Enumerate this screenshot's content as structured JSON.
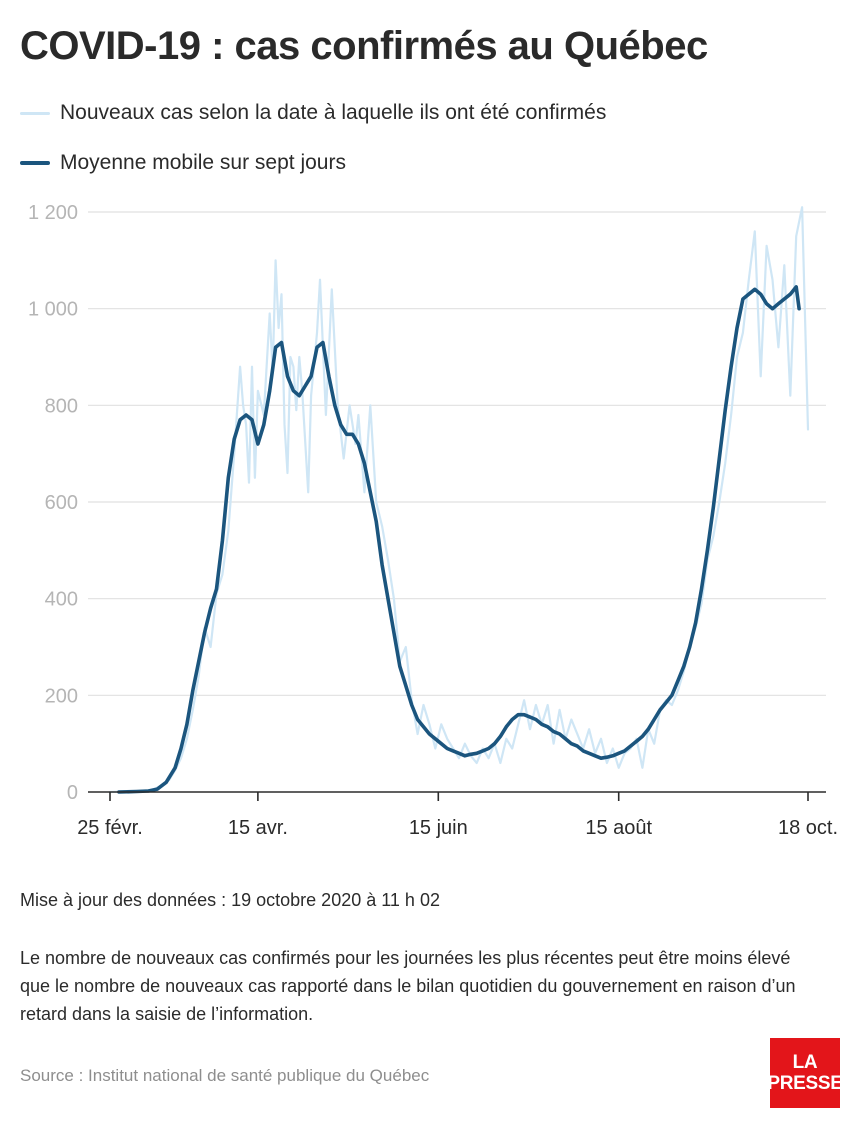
{
  "title": "COVID-19 : cas confirmés au Québec",
  "legend": [
    {
      "label": "Nouveaux cas selon la date à laquelle ils ont été confirmés",
      "color": "#cfe6f5"
    },
    {
      "label": "Moyenne mobile sur sept jours",
      "color": "#1b557e"
    }
  ],
  "updated": "Mise à jour des données : 19 octobre 2020 à 11 h 02",
  "note": "Le nombre de nouveaux cas confirmés pour les journées les plus récentes peut être moins élevé que le nombre de nouveaux cas rapporté dans le bilan quotidien du gouvernement en raison d’un retard dans la saisie de l’information.",
  "source": "Source : Institut national de santé publique du Québec",
  "logo": {
    "line1": "LA",
    "line2": "PRESSE"
  },
  "chart_data": {
    "type": "line",
    "title": "COVID-19 : cas confirmés au Québec",
    "xlabel": "",
    "ylabel": "",
    "x_start": "2020-02-25",
    "x_end": "2020-10-18",
    "ylim": [
      0,
      1200
    ],
    "grid": true,
    "legend_position": "top-left",
    "y_ticks": [
      {
        "value": 0,
        "label": "0"
      },
      {
        "value": 200,
        "label": "200"
      },
      {
        "value": 400,
        "label": "400"
      },
      {
        "value": 600,
        "label": "600"
      },
      {
        "value": 800,
        "label": "800"
      },
      {
        "value": 1000,
        "label": "1 000"
      },
      {
        "value": 1200,
        "label": "1 200"
      }
    ],
    "x_ticks": [
      {
        "date": "2020-02-25",
        "label": "25 févr."
      },
      {
        "date": "2020-04-15",
        "label": "15 avr."
      },
      {
        "date": "2020-06-15",
        "label": "15 juin"
      },
      {
        "date": "2020-08-15",
        "label": "15 août"
      },
      {
        "date": "2020-10-18",
        "label": "18 oct."
      }
    ],
    "series": [
      {
        "name": "Nouveaux cas selon la date à laquelle ils ont été confirmés",
        "color": "#cfe6f5",
        "points": [
          [
            "2020-02-25",
            0
          ],
          [
            "2020-03-01",
            1
          ],
          [
            "2020-03-06",
            2
          ],
          [
            "2020-03-10",
            4
          ],
          [
            "2020-03-13",
            12
          ],
          [
            "2020-03-16",
            25
          ],
          [
            "2020-03-18",
            45
          ],
          [
            "2020-03-20",
            70
          ],
          [
            "2020-03-22",
            110
          ],
          [
            "2020-03-24",
            170
          ],
          [
            "2020-03-26",
            240
          ],
          [
            "2020-03-28",
            340
          ],
          [
            "2020-03-30",
            300
          ],
          [
            "2020-04-01",
            410
          ],
          [
            "2020-04-03",
            450
          ],
          [
            "2020-04-05",
            540
          ],
          [
            "2020-04-07",
            700
          ],
          [
            "2020-04-09",
            880
          ],
          [
            "2020-04-10",
            800
          ],
          [
            "2020-04-11",
            760
          ],
          [
            "2020-04-12",
            640
          ],
          [
            "2020-04-13",
            880
          ],
          [
            "2020-04-14",
            650
          ],
          [
            "2020-04-15",
            830
          ],
          [
            "2020-04-17",
            780
          ],
          [
            "2020-04-19",
            990
          ],
          [
            "2020-04-20",
            870
          ],
          [
            "2020-04-21",
            1100
          ],
          [
            "2020-04-22",
            960
          ],
          [
            "2020-04-23",
            1030
          ],
          [
            "2020-04-24",
            760
          ],
          [
            "2020-04-25",
            660
          ],
          [
            "2020-04-26",
            900
          ],
          [
            "2020-04-27",
            880
          ],
          [
            "2020-04-28",
            790
          ],
          [
            "2020-04-29",
            900
          ],
          [
            "2020-04-30",
            830
          ],
          [
            "2020-05-02",
            620
          ],
          [
            "2020-05-03",
            820
          ],
          [
            "2020-05-05",
            950
          ],
          [
            "2020-05-06",
            1060
          ],
          [
            "2020-05-08",
            780
          ],
          [
            "2020-05-10",
            1040
          ],
          [
            "2020-05-12",
            800
          ],
          [
            "2020-05-14",
            690
          ],
          [
            "2020-05-16",
            800
          ],
          [
            "2020-05-18",
            720
          ],
          [
            "2020-05-19",
            780
          ],
          [
            "2020-05-21",
            620
          ],
          [
            "2020-05-23",
            800
          ],
          [
            "2020-05-25",
            600
          ],
          [
            "2020-05-27",
            550
          ],
          [
            "2020-05-29",
            480
          ],
          [
            "2020-05-31",
            400
          ],
          [
            "2020-06-02",
            270
          ],
          [
            "2020-06-04",
            300
          ],
          [
            "2020-06-06",
            190
          ],
          [
            "2020-06-08",
            120
          ],
          [
            "2020-06-10",
            180
          ],
          [
            "2020-06-12",
            140
          ],
          [
            "2020-06-14",
            90
          ],
          [
            "2020-06-16",
            140
          ],
          [
            "2020-06-18",
            110
          ],
          [
            "2020-06-20",
            90
          ],
          [
            "2020-06-22",
            70
          ],
          [
            "2020-06-24",
            100
          ],
          [
            "2020-06-26",
            75
          ],
          [
            "2020-06-28",
            60
          ],
          [
            "2020-06-30",
            90
          ],
          [
            "2020-07-02",
            70
          ],
          [
            "2020-07-04",
            100
          ],
          [
            "2020-07-06",
            60
          ],
          [
            "2020-07-08",
            110
          ],
          [
            "2020-07-10",
            90
          ],
          [
            "2020-07-12",
            140
          ],
          [
            "2020-07-14",
            190
          ],
          [
            "2020-07-16",
            130
          ],
          [
            "2020-07-18",
            180
          ],
          [
            "2020-07-20",
            140
          ],
          [
            "2020-07-22",
            180
          ],
          [
            "2020-07-24",
            100
          ],
          [
            "2020-07-26",
            170
          ],
          [
            "2020-07-28",
            110
          ],
          [
            "2020-07-30",
            150
          ],
          [
            "2020-08-01",
            120
          ],
          [
            "2020-08-03",
            90
          ],
          [
            "2020-08-05",
            130
          ],
          [
            "2020-08-07",
            80
          ],
          [
            "2020-08-09",
            110
          ],
          [
            "2020-08-11",
            60
          ],
          [
            "2020-08-13",
            90
          ],
          [
            "2020-08-15",
            50
          ],
          [
            "2020-08-17",
            80
          ],
          [
            "2020-08-19",
            90
          ],
          [
            "2020-08-21",
            110
          ],
          [
            "2020-08-23",
            50
          ],
          [
            "2020-08-25",
            130
          ],
          [
            "2020-08-27",
            100
          ],
          [
            "2020-08-29",
            170
          ],
          [
            "2020-08-31",
            190
          ],
          [
            "2020-09-02",
            180
          ],
          [
            "2020-09-04",
            210
          ],
          [
            "2020-09-06",
            250
          ],
          [
            "2020-09-08",
            300
          ],
          [
            "2020-09-10",
            340
          ],
          [
            "2020-09-12",
            390
          ],
          [
            "2020-09-14",
            480
          ],
          [
            "2020-09-16",
            530
          ],
          [
            "2020-09-18",
            600
          ],
          [
            "2020-09-20",
            680
          ],
          [
            "2020-09-22",
            780
          ],
          [
            "2020-09-24",
            900
          ],
          [
            "2020-09-26",
            950
          ],
          [
            "2020-09-28",
            1060
          ],
          [
            "2020-09-30",
            1160
          ],
          [
            "2020-10-02",
            860
          ],
          [
            "2020-10-04",
            1130
          ],
          [
            "2020-10-06",
            1060
          ],
          [
            "2020-10-08",
            920
          ],
          [
            "2020-10-10",
            1090
          ],
          [
            "2020-10-12",
            820
          ],
          [
            "2020-10-14",
            1150
          ],
          [
            "2020-10-16",
            1210
          ],
          [
            "2020-10-18",
            750
          ]
        ]
      },
      {
        "name": "Moyenne mobile sur sept jours",
        "color": "#1b557e",
        "points": [
          [
            "2020-02-28",
            0
          ],
          [
            "2020-03-05",
            1
          ],
          [
            "2020-03-09",
            2
          ],
          [
            "2020-03-12",
            6
          ],
          [
            "2020-03-15",
            20
          ],
          [
            "2020-03-18",
            50
          ],
          [
            "2020-03-20",
            90
          ],
          [
            "2020-03-22",
            140
          ],
          [
            "2020-03-24",
            210
          ],
          [
            "2020-03-26",
            270
          ],
          [
            "2020-03-28",
            330
          ],
          [
            "2020-03-30",
            380
          ],
          [
            "2020-04-01",
            420
          ],
          [
            "2020-04-03",
            520
          ],
          [
            "2020-04-05",
            650
          ],
          [
            "2020-04-07",
            730
          ],
          [
            "2020-04-09",
            770
          ],
          [
            "2020-04-11",
            780
          ],
          [
            "2020-04-13",
            770
          ],
          [
            "2020-04-15",
            720
          ],
          [
            "2020-04-17",
            760
          ],
          [
            "2020-04-19",
            830
          ],
          [
            "2020-04-21",
            920
          ],
          [
            "2020-04-23",
            930
          ],
          [
            "2020-04-25",
            860
          ],
          [
            "2020-04-27",
            830
          ],
          [
            "2020-04-29",
            820
          ],
          [
            "2020-05-01",
            840
          ],
          [
            "2020-05-03",
            860
          ],
          [
            "2020-05-05",
            920
          ],
          [
            "2020-05-07",
            930
          ],
          [
            "2020-05-09",
            860
          ],
          [
            "2020-05-11",
            800
          ],
          [
            "2020-05-13",
            760
          ],
          [
            "2020-05-15",
            740
          ],
          [
            "2020-05-17",
            740
          ],
          [
            "2020-05-19",
            720
          ],
          [
            "2020-05-21",
            680
          ],
          [
            "2020-05-23",
            620
          ],
          [
            "2020-05-25",
            560
          ],
          [
            "2020-05-27",
            470
          ],
          [
            "2020-05-29",
            400
          ],
          [
            "2020-05-31",
            330
          ],
          [
            "2020-06-02",
            260
          ],
          [
            "2020-06-04",
            220
          ],
          [
            "2020-06-06",
            180
          ],
          [
            "2020-06-08",
            150
          ],
          [
            "2020-06-10",
            135
          ],
          [
            "2020-06-12",
            120
          ],
          [
            "2020-06-14",
            110
          ],
          [
            "2020-06-16",
            100
          ],
          [
            "2020-06-18",
            90
          ],
          [
            "2020-06-20",
            85
          ],
          [
            "2020-06-22",
            80
          ],
          [
            "2020-06-24",
            75
          ],
          [
            "2020-06-26",
            78
          ],
          [
            "2020-06-28",
            80
          ],
          [
            "2020-06-30",
            85
          ],
          [
            "2020-07-02",
            90
          ],
          [
            "2020-07-04",
            100
          ],
          [
            "2020-07-06",
            115
          ],
          [
            "2020-07-08",
            135
          ],
          [
            "2020-07-10",
            150
          ],
          [
            "2020-07-12",
            160
          ],
          [
            "2020-07-14",
            160
          ],
          [
            "2020-07-16",
            155
          ],
          [
            "2020-07-18",
            150
          ],
          [
            "2020-07-20",
            140
          ],
          [
            "2020-07-22",
            135
          ],
          [
            "2020-07-24",
            125
          ],
          [
            "2020-07-26",
            120
          ],
          [
            "2020-07-28",
            110
          ],
          [
            "2020-07-30",
            100
          ],
          [
            "2020-08-01",
            95
          ],
          [
            "2020-08-03",
            85
          ],
          [
            "2020-08-05",
            80
          ],
          [
            "2020-08-07",
            75
          ],
          [
            "2020-08-09",
            70
          ],
          [
            "2020-08-11",
            72
          ],
          [
            "2020-08-13",
            75
          ],
          [
            "2020-08-15",
            80
          ],
          [
            "2020-08-17",
            85
          ],
          [
            "2020-08-19",
            95
          ],
          [
            "2020-08-21",
            105
          ],
          [
            "2020-08-23",
            115
          ],
          [
            "2020-08-25",
            130
          ],
          [
            "2020-08-27",
            150
          ],
          [
            "2020-08-29",
            170
          ],
          [
            "2020-08-31",
            185
          ],
          [
            "2020-09-02",
            200
          ],
          [
            "2020-09-04",
            230
          ],
          [
            "2020-09-06",
            260
          ],
          [
            "2020-09-08",
            300
          ],
          [
            "2020-09-10",
            350
          ],
          [
            "2020-09-12",
            420
          ],
          [
            "2020-09-14",
            500
          ],
          [
            "2020-09-16",
            590
          ],
          [
            "2020-09-18",
            690
          ],
          [
            "2020-09-20",
            790
          ],
          [
            "2020-09-22",
            880
          ],
          [
            "2020-09-24",
            960
          ],
          [
            "2020-09-26",
            1020
          ],
          [
            "2020-09-28",
            1030
          ],
          [
            "2020-09-30",
            1040
          ],
          [
            "2020-10-02",
            1030
          ],
          [
            "2020-10-04",
            1010
          ],
          [
            "2020-10-06",
            1000
          ],
          [
            "2020-10-08",
            1010
          ],
          [
            "2020-10-10",
            1020
          ],
          [
            "2020-10-12",
            1030
          ],
          [
            "2020-10-14",
            1045
          ],
          [
            "2020-10-15",
            1000
          ]
        ]
      }
    ]
  }
}
